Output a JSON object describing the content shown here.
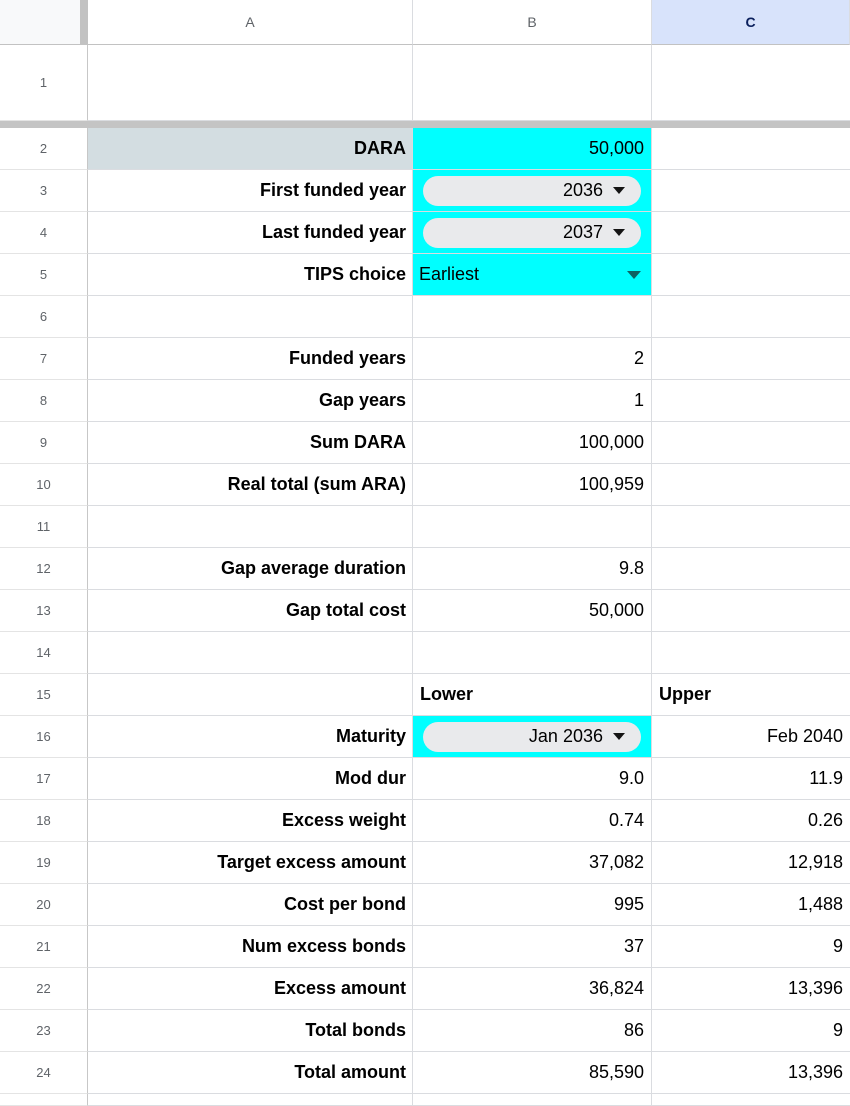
{
  "column_headers": {
    "a": "A",
    "b": "B",
    "c": "C",
    "selected_column": "C"
  },
  "colors": {
    "highlight_cyan": "#00ffff",
    "label_cell_bg": "#d3dde1",
    "selected_header_bg": "#d8e3fb",
    "selected_header_text": "#0a1f5c",
    "header_text": "#5f6368",
    "gridline": "#dadce0",
    "freeze_divider": "#c4c4c4",
    "chip_bg": "#e9eaec",
    "teal_dropdown_arrow": "#0e6363",
    "cell_text": "#000000"
  },
  "rows": [
    {
      "n": "1",
      "h": 76,
      "cells": {}
    },
    {
      "divider": true
    },
    {
      "n": "2",
      "cells": {
        "a": {
          "text": "DARA",
          "kind": "label",
          "bg": "gray"
        },
        "b": {
          "text": "50,000",
          "kind": "value",
          "bg": "cyan"
        },
        "c": {}
      }
    },
    {
      "n": "3",
      "cells": {
        "a": {
          "text": "First funded year",
          "kind": "label"
        },
        "b": {
          "text": "2036",
          "kind": "chip",
          "bg": "cyan"
        },
        "c": {}
      }
    },
    {
      "n": "4",
      "cells": {
        "a": {
          "text": "Last funded year",
          "kind": "label"
        },
        "b": {
          "text": "2037",
          "kind": "chip",
          "bg": "cyan"
        },
        "c": {}
      }
    },
    {
      "n": "5",
      "cells": {
        "a": {
          "text": "TIPS choice",
          "kind": "label"
        },
        "b": {
          "text": "Earliest",
          "kind": "dropdown",
          "bg": "cyan"
        },
        "c": {}
      }
    },
    {
      "n": "6",
      "cells": {}
    },
    {
      "n": "7",
      "cells": {
        "a": {
          "text": "Funded years",
          "kind": "label"
        },
        "b": {
          "text": "2",
          "kind": "value"
        },
        "c": {}
      }
    },
    {
      "n": "8",
      "cells": {
        "a": {
          "text": "Gap years",
          "kind": "label"
        },
        "b": {
          "text": "1",
          "kind": "value"
        },
        "c": {}
      }
    },
    {
      "n": "9",
      "cells": {
        "a": {
          "text": "Sum DARA",
          "kind": "label"
        },
        "b": {
          "text": "100,000",
          "kind": "value"
        },
        "c": {}
      }
    },
    {
      "n": "10",
      "cells": {
        "a": {
          "text": "Real total (sum ARA)",
          "kind": "label"
        },
        "b": {
          "text": "100,959",
          "kind": "value"
        },
        "c": {}
      }
    },
    {
      "n": "11",
      "cells": {}
    },
    {
      "n": "12",
      "cells": {
        "a": {
          "text": "Gap average duration",
          "kind": "label"
        },
        "b": {
          "text": "9.8",
          "kind": "value"
        },
        "c": {}
      }
    },
    {
      "n": "13",
      "cells": {
        "a": {
          "text": "Gap total cost",
          "kind": "label"
        },
        "b": {
          "text": "50,000",
          "kind": "value"
        },
        "c": {}
      }
    },
    {
      "n": "14",
      "cells": {}
    },
    {
      "n": "15",
      "cells": {
        "a": {},
        "b": {
          "text": "Lower",
          "kind": "boldleft"
        },
        "c": {
          "text": "Upper",
          "kind": "boldleft"
        }
      }
    },
    {
      "n": "16",
      "cells": {
        "a": {
          "text": "Maturity",
          "kind": "label"
        },
        "b": {
          "text": "Jan 2036",
          "kind": "chip",
          "bg": "cyan"
        },
        "c": {
          "text": "Feb 2040",
          "kind": "value"
        }
      }
    },
    {
      "n": "17",
      "cells": {
        "a": {
          "text": "Mod dur",
          "kind": "label"
        },
        "b": {
          "text": "9.0",
          "kind": "value"
        },
        "c": {
          "text": "11.9",
          "kind": "value"
        }
      }
    },
    {
      "n": "18",
      "cells": {
        "a": {
          "text": "Excess weight",
          "kind": "label"
        },
        "b": {
          "text": "0.74",
          "kind": "value"
        },
        "c": {
          "text": "0.26",
          "kind": "value"
        }
      }
    },
    {
      "n": "19",
      "cells": {
        "a": {
          "text": "Target excess amount",
          "kind": "label"
        },
        "b": {
          "text": "37,082",
          "kind": "value"
        },
        "c": {
          "text": "12,918",
          "kind": "value"
        }
      }
    },
    {
      "n": "20",
      "cells": {
        "a": {
          "text": "Cost per bond",
          "kind": "label"
        },
        "b": {
          "text": "995",
          "kind": "value"
        },
        "c": {
          "text": "1,488",
          "kind": "value"
        }
      }
    },
    {
      "n": "21",
      "cells": {
        "a": {
          "text": "Num excess bonds",
          "kind": "label"
        },
        "b": {
          "text": "37",
          "kind": "value"
        },
        "c": {
          "text": "9",
          "kind": "value"
        }
      }
    },
    {
      "n": "22",
      "cells": {
        "a": {
          "text": "Excess amount",
          "kind": "label"
        },
        "b": {
          "text": "36,824",
          "kind": "value"
        },
        "c": {
          "text": "13,396",
          "kind": "value"
        }
      }
    },
    {
      "n": "23",
      "cells": {
        "a": {
          "text": "Total bonds",
          "kind": "label"
        },
        "b": {
          "text": "86",
          "kind": "value"
        },
        "c": {
          "text": "9",
          "kind": "value"
        }
      }
    },
    {
      "n": "24",
      "cells": {
        "a": {
          "text": "Total amount",
          "kind": "label"
        },
        "b": {
          "text": "85,590",
          "kind": "value"
        },
        "c": {
          "text": "13,396",
          "kind": "value"
        }
      }
    },
    {
      "n": "",
      "h": 12,
      "cells": {}
    }
  ]
}
